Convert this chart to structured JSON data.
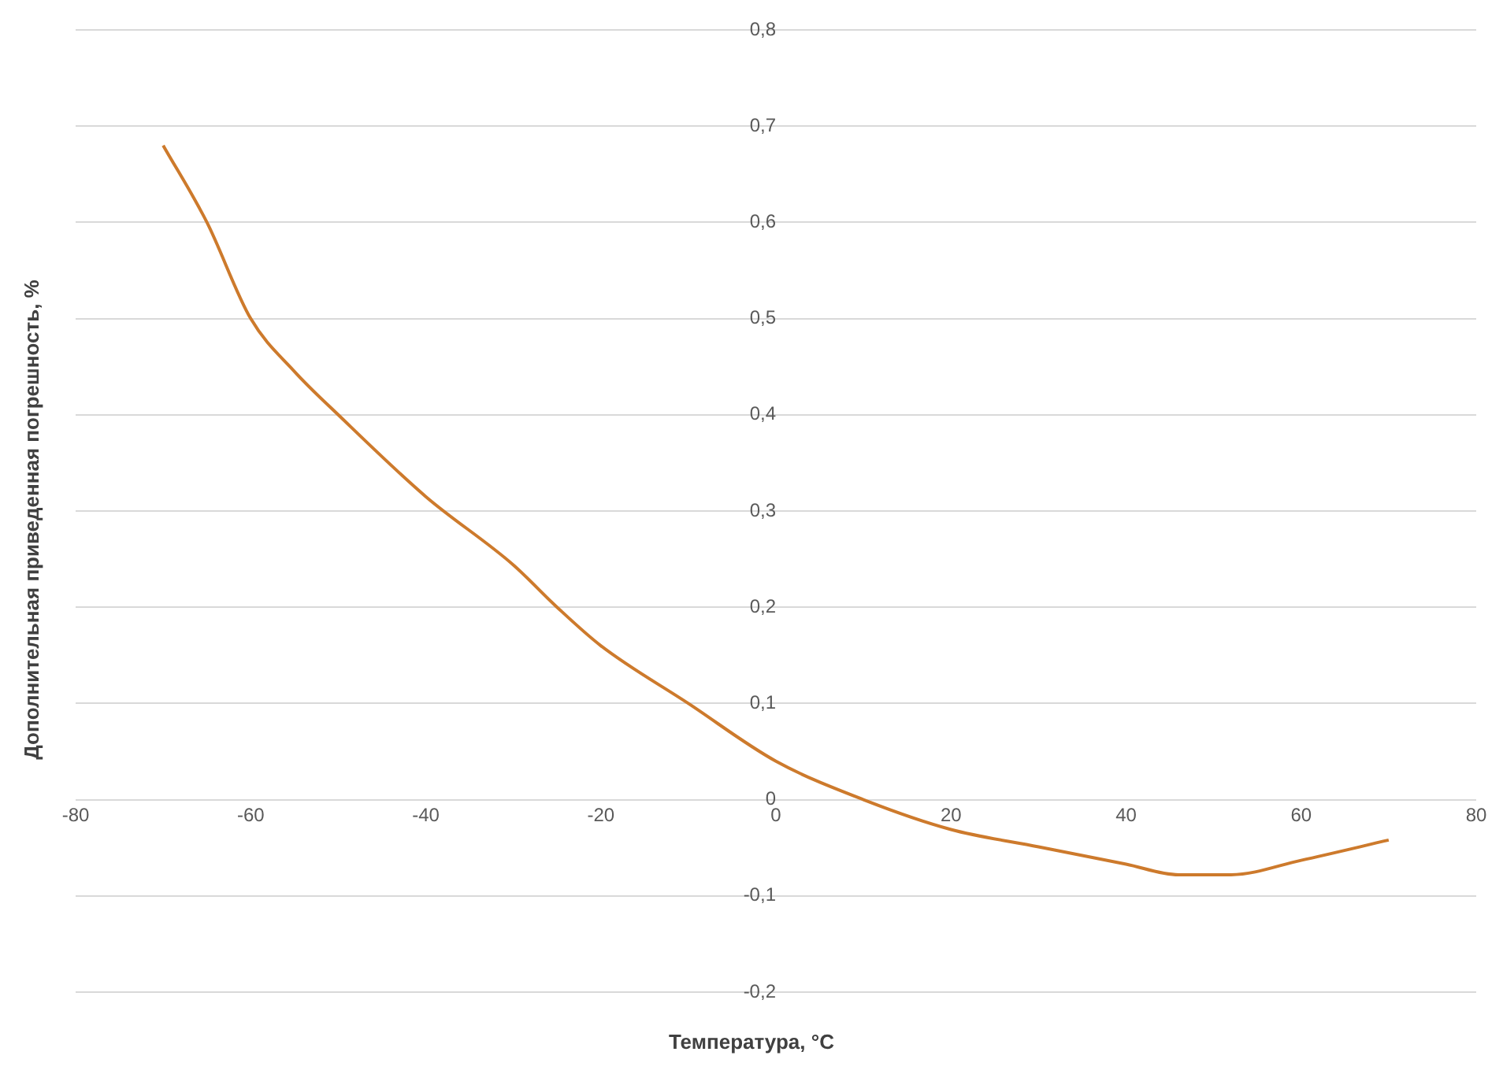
{
  "chart_data": {
    "type": "line",
    "xlabel": "Температура, °C",
    "ylabel": "Дополнительная приведенная погрешность, %",
    "x": [
      -70,
      -65,
      -60,
      -55,
      -50,
      -40,
      -30,
      -25,
      -20,
      -10,
      0,
      10,
      20,
      30,
      40,
      46,
      52,
      60,
      70
    ],
    "series": [
      {
        "color": "#cd7a2c",
        "values": [
          0.68,
          0.6,
          0.5,
          0.445,
          0.4,
          0.315,
          0.244,
          0.2,
          0.16,
          0.1,
          0.04,
          0,
          -0.031,
          -0.049,
          -0.067,
          -0.078,
          -0.078,
          -0.063,
          -0.042
        ]
      }
    ],
    "xlim": [
      -80,
      80
    ],
    "xticks": [
      -80,
      -60,
      -40,
      -20,
      0,
      20,
      40,
      60,
      80
    ],
    "ylim": [
      -0.2,
      0.8
    ],
    "yticks": [
      {
        "value": -0.2,
        "label": "-0,2"
      },
      {
        "value": -0.1,
        "label": "-0,1"
      },
      0,
      {
        "value": 0.1,
        "label": "0,1"
      },
      {
        "value": 0.2,
        "label": "0,2"
      },
      {
        "value": 0.3,
        "label": "0,3"
      },
      {
        "value": 0.4,
        "label": "0,4"
      },
      {
        "value": 0.5,
        "label": "0,5"
      },
      {
        "value": 0.6,
        "label": "0,6"
      },
      {
        "value": 0.7,
        "label": "0,7"
      },
      {
        "value": 0.8,
        "label": "0,8"
      }
    ],
    "grid": "y",
    "legend": false,
    "marker": "none",
    "line_style": "solid"
  }
}
